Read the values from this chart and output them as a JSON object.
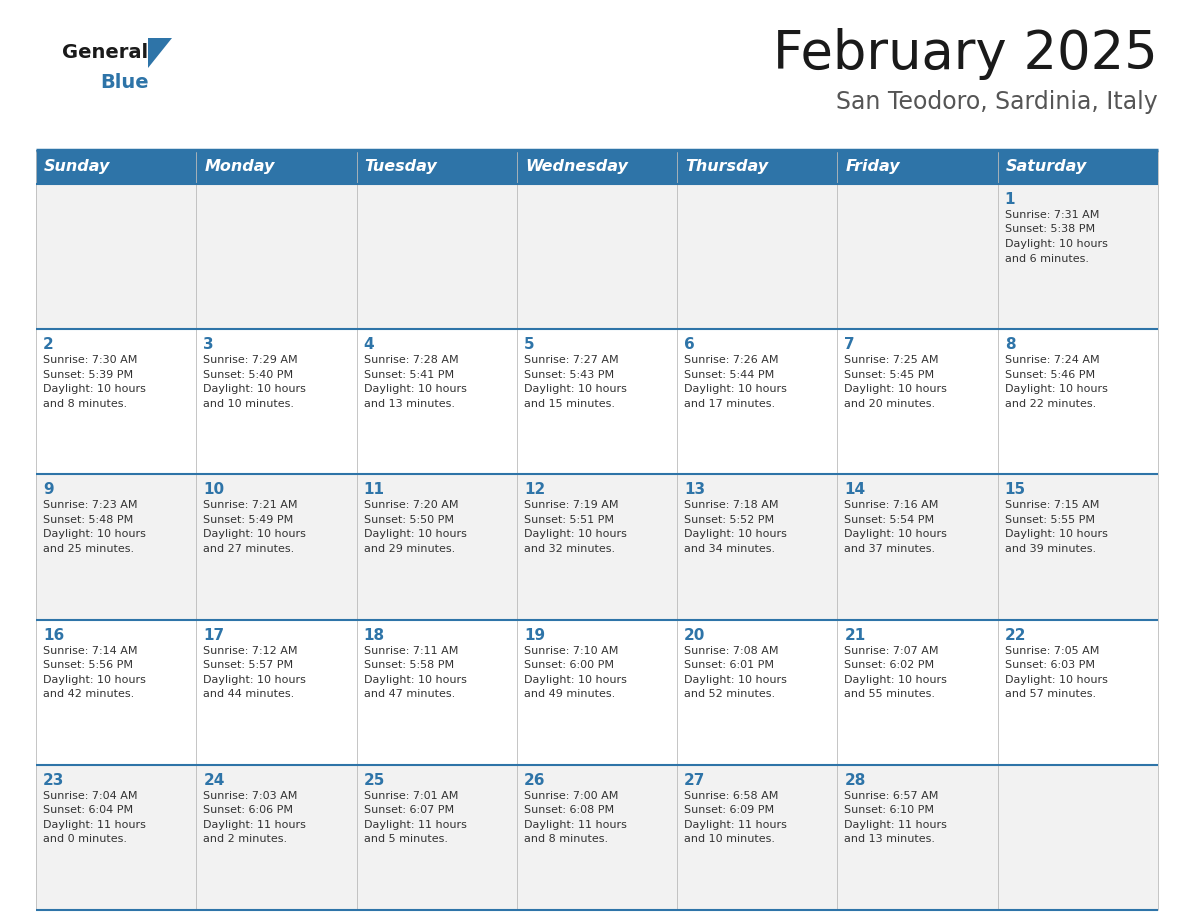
{
  "title": "February 2025",
  "subtitle": "San Teodoro, Sardinia, Italy",
  "days_of_week": [
    "Sunday",
    "Monday",
    "Tuesday",
    "Wednesday",
    "Thursday",
    "Friday",
    "Saturday"
  ],
  "header_bg": "#2E74A8",
  "header_text": "#FFFFFF",
  "cell_bg_odd": "#F2F2F2",
  "cell_bg_even": "#FFFFFF",
  "border_color": "#2E74A8",
  "separator_color": "#3A7EBA",
  "text_color": "#333333",
  "day_num_color": "#2E74A8",
  "logo_text_color": "#1a1a1a",
  "logo_blue_color": "#2E74A8",
  "title_color": "#1a1a1a",
  "subtitle_color": "#555555",
  "calendar": [
    [
      null,
      null,
      null,
      null,
      null,
      null,
      {
        "day": "1",
        "sunrise": "7:31 AM",
        "sunset": "5:38 PM",
        "daylight": "10 hours\nand 6 minutes."
      }
    ],
    [
      {
        "day": "2",
        "sunrise": "7:30 AM",
        "sunset": "5:39 PM",
        "daylight": "10 hours\nand 8 minutes."
      },
      {
        "day": "3",
        "sunrise": "7:29 AM",
        "sunset": "5:40 PM",
        "daylight": "10 hours\nand 10 minutes."
      },
      {
        "day": "4",
        "sunrise": "7:28 AM",
        "sunset": "5:41 PM",
        "daylight": "10 hours\nand 13 minutes."
      },
      {
        "day": "5",
        "sunrise": "7:27 AM",
        "sunset": "5:43 PM",
        "daylight": "10 hours\nand 15 minutes."
      },
      {
        "day": "6",
        "sunrise": "7:26 AM",
        "sunset": "5:44 PM",
        "daylight": "10 hours\nand 17 minutes."
      },
      {
        "day": "7",
        "sunrise": "7:25 AM",
        "sunset": "5:45 PM",
        "daylight": "10 hours\nand 20 minutes."
      },
      {
        "day": "8",
        "sunrise": "7:24 AM",
        "sunset": "5:46 PM",
        "daylight": "10 hours\nand 22 minutes."
      }
    ],
    [
      {
        "day": "9",
        "sunrise": "7:23 AM",
        "sunset": "5:48 PM",
        "daylight": "10 hours\nand 25 minutes."
      },
      {
        "day": "10",
        "sunrise": "7:21 AM",
        "sunset": "5:49 PM",
        "daylight": "10 hours\nand 27 minutes."
      },
      {
        "day": "11",
        "sunrise": "7:20 AM",
        "sunset": "5:50 PM",
        "daylight": "10 hours\nand 29 minutes."
      },
      {
        "day": "12",
        "sunrise": "7:19 AM",
        "sunset": "5:51 PM",
        "daylight": "10 hours\nand 32 minutes."
      },
      {
        "day": "13",
        "sunrise": "7:18 AM",
        "sunset": "5:52 PM",
        "daylight": "10 hours\nand 34 minutes."
      },
      {
        "day": "14",
        "sunrise": "7:16 AM",
        "sunset": "5:54 PM",
        "daylight": "10 hours\nand 37 minutes."
      },
      {
        "day": "15",
        "sunrise": "7:15 AM",
        "sunset": "5:55 PM",
        "daylight": "10 hours\nand 39 minutes."
      }
    ],
    [
      {
        "day": "16",
        "sunrise": "7:14 AM",
        "sunset": "5:56 PM",
        "daylight": "10 hours\nand 42 minutes."
      },
      {
        "day": "17",
        "sunrise": "7:12 AM",
        "sunset": "5:57 PM",
        "daylight": "10 hours\nand 44 minutes."
      },
      {
        "day": "18",
        "sunrise": "7:11 AM",
        "sunset": "5:58 PM",
        "daylight": "10 hours\nand 47 minutes."
      },
      {
        "day": "19",
        "sunrise": "7:10 AM",
        "sunset": "6:00 PM",
        "daylight": "10 hours\nand 49 minutes."
      },
      {
        "day": "20",
        "sunrise": "7:08 AM",
        "sunset": "6:01 PM",
        "daylight": "10 hours\nand 52 minutes."
      },
      {
        "day": "21",
        "sunrise": "7:07 AM",
        "sunset": "6:02 PM",
        "daylight": "10 hours\nand 55 minutes."
      },
      {
        "day": "22",
        "sunrise": "7:05 AM",
        "sunset": "6:03 PM",
        "daylight": "10 hours\nand 57 minutes."
      }
    ],
    [
      {
        "day": "23",
        "sunrise": "7:04 AM",
        "sunset": "6:04 PM",
        "daylight": "11 hours\nand 0 minutes."
      },
      {
        "day": "24",
        "sunrise": "7:03 AM",
        "sunset": "6:06 PM",
        "daylight": "11 hours\nand 2 minutes."
      },
      {
        "day": "25",
        "sunrise": "7:01 AM",
        "sunset": "6:07 PM",
        "daylight": "11 hours\nand 5 minutes."
      },
      {
        "day": "26",
        "sunrise": "7:00 AM",
        "sunset": "6:08 PM",
        "daylight": "11 hours\nand 8 minutes."
      },
      {
        "day": "27",
        "sunrise": "6:58 AM",
        "sunset": "6:09 PM",
        "daylight": "11 hours\nand 10 minutes."
      },
      {
        "day": "28",
        "sunrise": "6:57 AM",
        "sunset": "6:10 PM",
        "daylight": "11 hours\nand 13 minutes."
      },
      null
    ]
  ]
}
